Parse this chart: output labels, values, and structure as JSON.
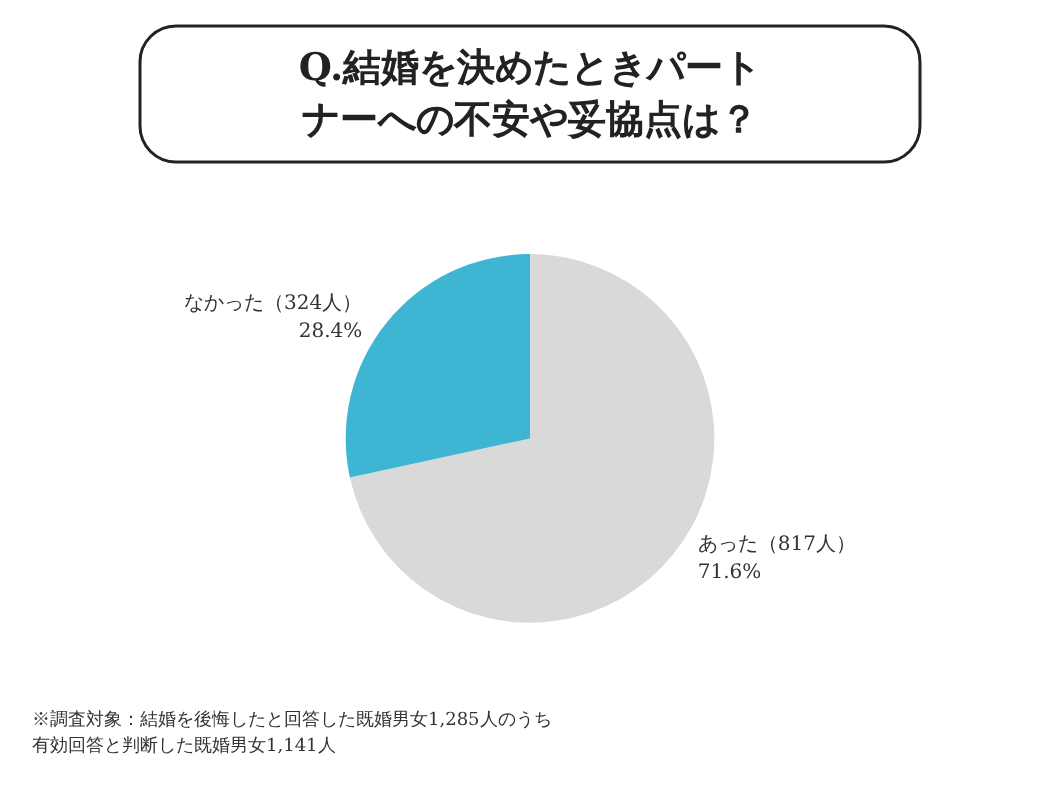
{
  "chart_data": {
    "type": "pie",
    "title": "Q.結婚を決めたときパートナーへの不安や妥協点は？",
    "categories": [
      "あった（817人）",
      "なかった（324人）"
    ],
    "values": [
      71.6,
      28.4
    ],
    "value_labels": [
      "71.6%",
      "28.4%"
    ],
    "colors": [
      "#d9d9d9",
      "#3db5d3"
    ],
    "legend": false,
    "annotations": [
      "※調査対象：結婚を後悔したと回答した既婚男女1,285人のうち有効回答と判断した既婚男女1,141人"
    ]
  }
}
